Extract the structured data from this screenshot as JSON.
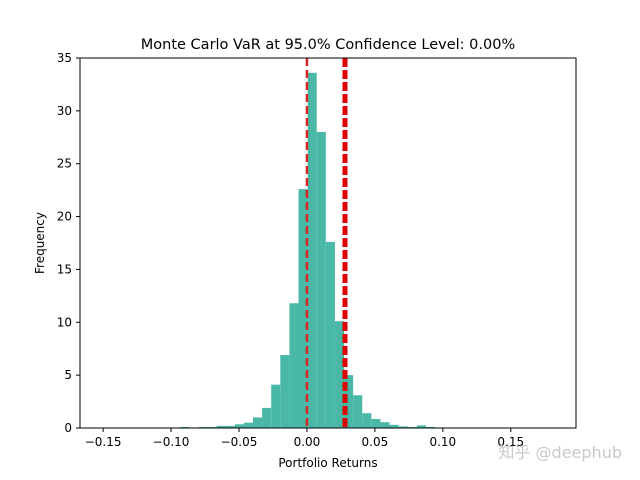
{
  "chart_data": {
    "type": "bar",
    "title": "Monte Carlo VaR at 95.0% Confidence Level: 0.00%",
    "xlabel": "Portfolio Returns",
    "ylabel": "Frequency",
    "xlim": [
      -0.167,
      0.198
    ],
    "ylim": [
      0,
      35
    ],
    "x_ticks": [
      -0.15,
      -0.1,
      -0.05,
      0.0,
      0.05,
      0.1,
      0.15
    ],
    "x_tick_labels": [
      "−0.15",
      "−0.10",
      "−0.05",
      "0.00",
      "0.05",
      "0.10",
      "0.15"
    ],
    "y_ticks": [
      0,
      5,
      10,
      15,
      20,
      25,
      30,
      35
    ],
    "y_tick_labels": [
      "0",
      "5",
      "10",
      "15",
      "20",
      "25",
      "30",
      "35"
    ],
    "bin_width": 0.0067,
    "bins": [
      {
        "left": -0.1,
        "value": 0.05
      },
      {
        "left": -0.0933,
        "value": 0.1
      },
      {
        "left": -0.0866,
        "value": 0.05
      },
      {
        "left": -0.0799,
        "value": 0.1
      },
      {
        "left": -0.0732,
        "value": 0.1
      },
      {
        "left": -0.0665,
        "value": 0.2
      },
      {
        "left": -0.0598,
        "value": 0.2
      },
      {
        "left": -0.0531,
        "value": 0.35
      },
      {
        "left": -0.0464,
        "value": 0.5
      },
      {
        "left": -0.0397,
        "value": 1.0
      },
      {
        "left": -0.033,
        "value": 1.9
      },
      {
        "left": -0.0263,
        "value": 4.1
      },
      {
        "left": -0.0196,
        "value": 6.9
      },
      {
        "left": -0.0129,
        "value": 11.8
      },
      {
        "left": -0.0062,
        "value": 22.6
      },
      {
        "left": 0.0005,
        "value": 33.6
      },
      {
        "left": 0.0072,
        "value": 28.0
      },
      {
        "left": 0.0139,
        "value": 17.6
      },
      {
        "left": 0.0206,
        "value": 10.1
      },
      {
        "left": 0.0273,
        "value": 5.0
      },
      {
        "left": 0.034,
        "value": 3.1
      },
      {
        "left": 0.0407,
        "value": 1.4
      },
      {
        "left": 0.0474,
        "value": 0.85
      },
      {
        "left": 0.0541,
        "value": 0.55
      },
      {
        "left": 0.0608,
        "value": 0.3
      },
      {
        "left": 0.0675,
        "value": 0.15
      },
      {
        "left": 0.0742,
        "value": 0.1
      },
      {
        "left": 0.0809,
        "value": 0.25
      },
      {
        "left": 0.0876,
        "value": 0.1
      },
      {
        "left": 0.0943,
        "value": 0.05
      }
    ],
    "vlines": [
      {
        "x": 0.0,
        "style": "dashed",
        "color": "#d62728"
      },
      {
        "x": 0.028,
        "style": "dashed-thick",
        "color": "#e00000"
      }
    ],
    "colors": {
      "bar": "#4ab8a7",
      "vline_var": "#d62728",
      "vline_mean": "#e00000"
    },
    "grid": false,
    "legend": "none"
  },
  "watermark": "知乎 @deephub"
}
